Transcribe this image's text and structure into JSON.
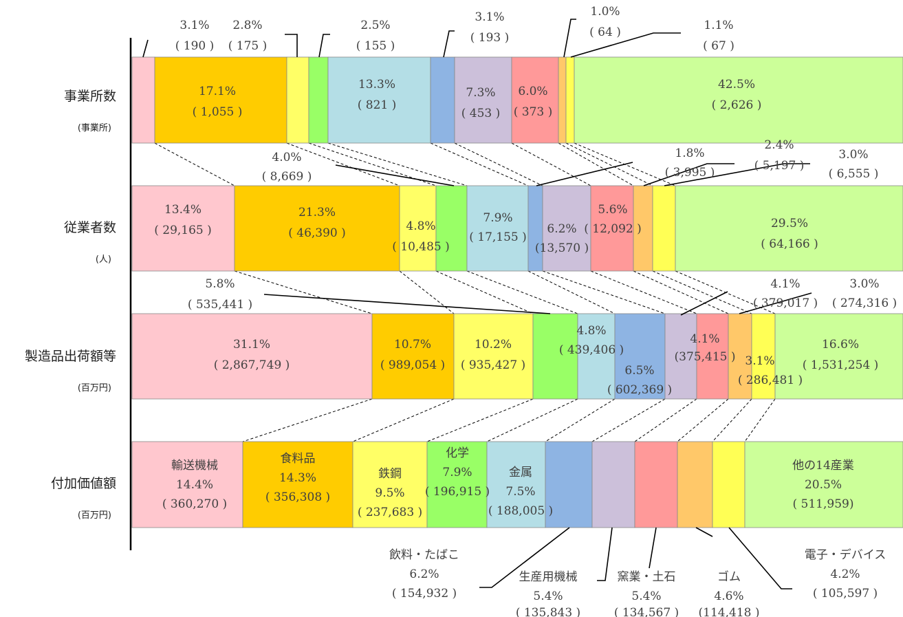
{
  "chart_data": {
    "type": "bar",
    "subtype": "stacked-100-horizontal-comparison",
    "rows": [
      {
        "label": "事業所数",
        "unit": "(事業所)"
      },
      {
        "label": "従業者数",
        "unit": "(人)"
      },
      {
        "label": "製造品出荷額等",
        "unit": "(百万円)"
      },
      {
        "label": "付加価値額",
        "unit": "(百万円)"
      }
    ],
    "categories": [
      "輸送機械",
      "食料品",
      "鉄鋼",
      "化学",
      "金属",
      "飲料・たばこ",
      "生産用機械",
      "窯業・土石",
      "ゴム",
      "電子・デバイス",
      "他の14産業"
    ],
    "colors": [
      "#FFC7CE",
      "#FFCC00",
      "#FFFF66",
      "#99FF66",
      "#B4DEE6",
      "#8EB4E3",
      "#CCC0DA",
      "#FF9999",
      "#FFC869",
      "#FFFF55",
      "#CCFF99"
    ],
    "establishments": {
      "pct": [
        "",
        "17.1%",
        "3.1%",
        "2.8%",
        "13.3%",
        "3.1%",
        "7.3%",
        "6.0%",
        "1.0%",
        "1.1%",
        "42.5%"
      ],
      "val": [
        "",
        "( 1,055 )",
        "( 190 )",
        "( 175 )",
        "( 821 )",
        "( 193 )",
        "( 453 )",
        "( 373 )",
        "( 64 )",
        "( 67 )",
        "( 2,626 )"
      ],
      "extra_top_pct": "2.5%",
      "extra_top_val": "( 155 )",
      "note": "leftmost segment unlabeled"
    },
    "employees": {
      "pct": [
        "13.4%",
        "21.3%",
        "4.8%",
        "4.0%",
        "7.9%",
        "1.8%",
        "6.2%",
        "5.6%",
        "2.4%",
        "3.0%",
        "29.5%"
      ],
      "val": [
        "( 29,165 )",
        "( 46,390 )",
        "( 10,485 )",
        "( 8,669 )",
        "( 17,155 )",
        "( 3,995 )",
        "(13,570 )",
        "( 12,092 )",
        "( 5,197 )",
        "( 6,555 )",
        "( 64,166 )"
      ]
    },
    "shipments": {
      "pct": [
        "31.1%",
        "10.7%",
        "10.2%",
        "5.8%",
        "4.8%",
        "6.5%",
        "4.1%",
        "4.1%",
        "3.1%",
        "3.0%",
        "16.6%"
      ],
      "val": [
        "( 2,867,749 )",
        "( 989,054 )",
        "( 935,427 )",
        "( 535,441 )",
        "( 439,406 )",
        "( 602,369 )",
        "(375,415 )",
        "( 379,017 )",
        "( 286,481 )",
        "( 274,316 )",
        "( 1,531,254 )"
      ]
    },
    "value_added": {
      "pct": [
        "14.4%",
        "14.3%",
        "9.5%",
        "7.9%",
        "7.5%",
        "6.2%",
        "5.4%",
        "5.4%",
        "4.6%",
        "4.2%",
        "20.5%"
      ],
      "val": [
        "( 360,270 )",
        "( 356,308 )",
        "( 237,683 )",
        "( 196,915 )",
        "( 188,005 )",
        "( 154,932 )",
        "( 135,843 )",
        "( 134,567 )",
        "(114,418 )",
        "( 105,597 )",
        "( 511,959)"
      ]
    }
  }
}
